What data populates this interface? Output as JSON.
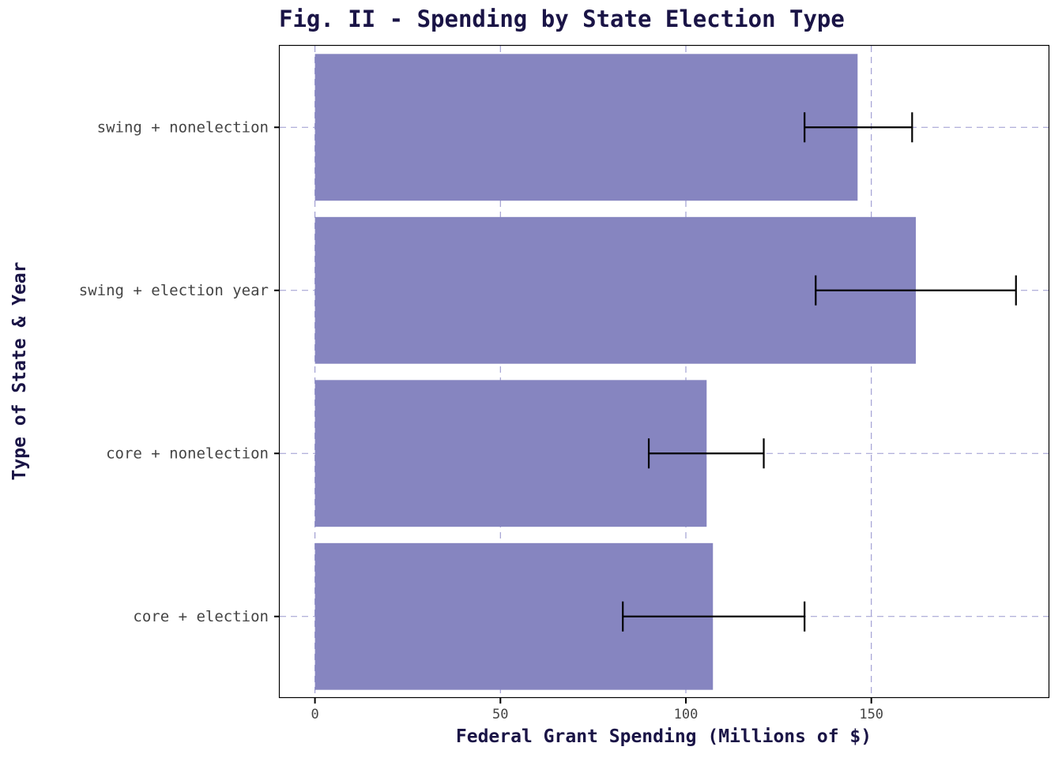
{
  "chart_data": {
    "type": "bar",
    "orientation": "horizontal",
    "title": "Fig. II - Spending by State Election Type",
    "xlabel": "Federal Grant Spending (Millions of $)",
    "ylabel": "Type of State & Year",
    "categories": [
      "core + election",
      "core + nonelection",
      "swing + election year",
      "swing + nonelection"
    ],
    "values": [
      107.3,
      105.6,
      162.0,
      146.3
    ],
    "error_low": [
      83.0,
      90.0,
      135.0,
      132.0
    ],
    "error_high": [
      132.0,
      121.0,
      189.0,
      161.0
    ],
    "xlim": [
      -9.5,
      198
    ],
    "xticks": [
      0,
      50,
      100,
      150
    ],
    "grid": true,
    "bar_color": "#8685c0",
    "grid_color": "#9a98cf",
    "errorbar_color": "#000000"
  }
}
